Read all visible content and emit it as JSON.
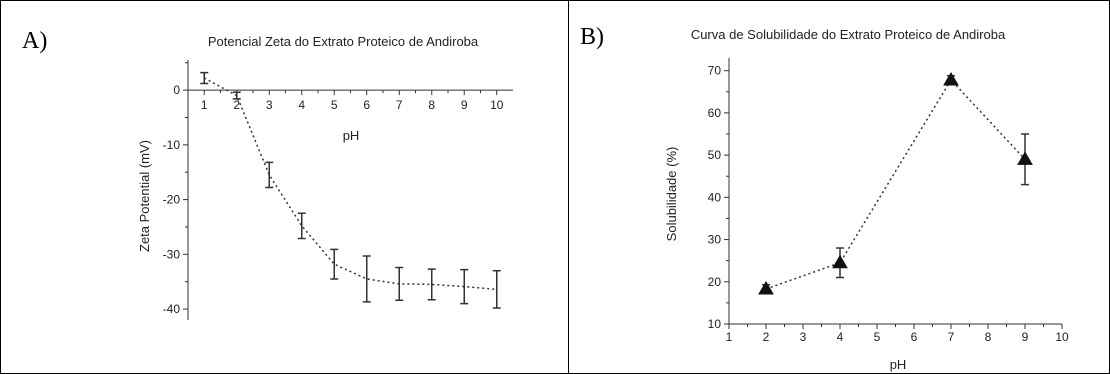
{
  "panels": {
    "a_label": "A)",
    "b_label": "B)"
  },
  "chart_data": [
    {
      "type": "line",
      "title": "Potencial Zeta do Extrato Proteico de Andiroba",
      "xlabel": "pH",
      "ylabel": "Zeta Potential (mV)",
      "xlim": [
        0.5,
        10.5
      ],
      "ylim": [
        -42,
        5.5
      ],
      "xticks": [
        1,
        2,
        3,
        4,
        5,
        6,
        7,
        8,
        9,
        10
      ],
      "yticks": [
        0,
        -10,
        -20,
        -30,
        -40
      ],
      "x_axis_at_zero": true,
      "grid": false,
      "legend": "none",
      "marker": "none",
      "series": [
        {
          "x": [
            1,
            2,
            3,
            4,
            5,
            6,
            7,
            8,
            9,
            10
          ],
          "y": [
            2.2,
            -1.0,
            -15.5,
            -24.8,
            -31.8,
            -34.5,
            -35.4,
            -35.5,
            -35.9,
            -36.4
          ],
          "err": [
            1.0,
            0.6,
            2.3,
            2.3,
            2.7,
            4.2,
            3.0,
            2.8,
            3.1,
            3.4
          ]
        }
      ]
    },
    {
      "type": "line",
      "title": "Curva de Solubilidade do Extrato Proteico de Andiroba",
      "xlabel": "pH",
      "ylabel": "Solubilidade (%)",
      "xlim": [
        1,
        10
      ],
      "ylim": [
        10,
        73
      ],
      "xticks": [
        1,
        2,
        3,
        4,
        5,
        6,
        7,
        8,
        9,
        10
      ],
      "yticks": [
        10,
        20,
        30,
        40,
        50,
        60,
        70
      ],
      "grid": false,
      "legend": "none",
      "marker": "triangle",
      "series": [
        {
          "x": [
            2,
            4,
            7,
            9
          ],
          "y": [
            18.3,
            24.5,
            67.8,
            49.0
          ],
          "err": [
            1.0,
            3.5,
            1.0,
            6.0
          ]
        }
      ]
    }
  ]
}
